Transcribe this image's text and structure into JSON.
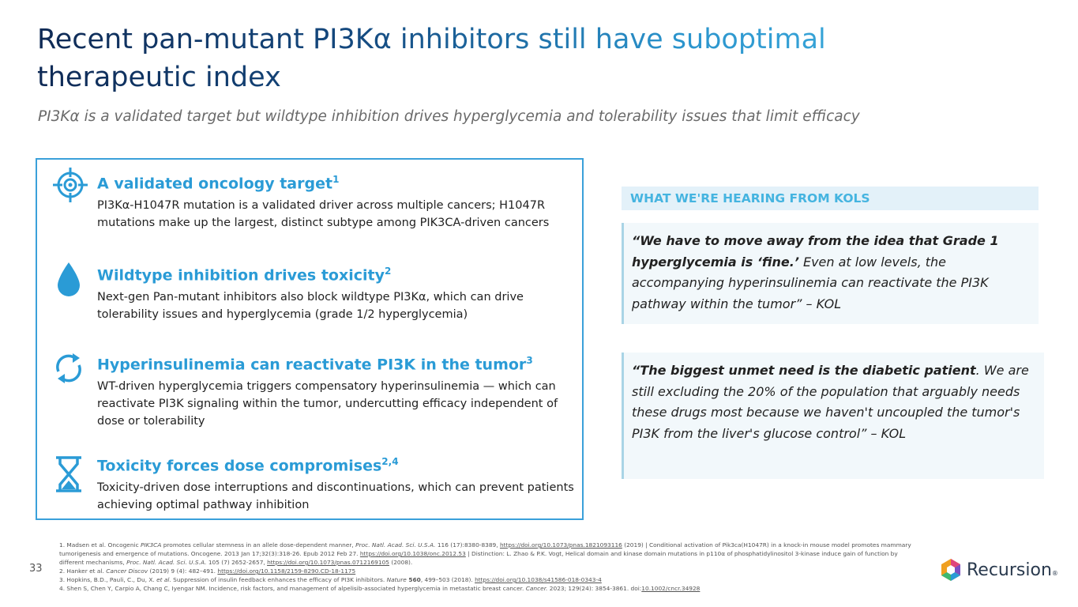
{
  "header": {
    "title": "Recent pan-mutant PI3Kα inhibitors still have suboptimal therapeutic index",
    "subtitle": "PI3Kα is a validated target but wildtype inhibition drives hyperglycemia and tolerability issues that limit efficacy"
  },
  "points": [
    {
      "heading": "A validated oncology target",
      "sup": "1",
      "body": "PI3Kα-H1047R mutation is a validated driver across multiple cancers; H1047R mutations make up the largest, distinct subtype among PIK3CA-driven cancers"
    },
    {
      "heading": "Wildtype inhibition drives toxicity",
      "sup": "2",
      "body": "Next-gen Pan-mutant inhibitors also block wildtype PI3Kα, which can drive tolerability issues and hyperglycemia (grade 1/2 hyperglycemia)"
    },
    {
      "heading": "Hyperinsulinemia can reactivate PI3K in the tumor",
      "sup": "3",
      "body": "WT-driven hyperglycemia triggers compensatory hyperinsulinemia — which can reactivate PI3K signaling within the tumor, undercutting efficacy independent of dose or tolerability"
    },
    {
      "heading": "Toxicity forces dose compromises",
      "sup": "2,4",
      "body": "Toxicity-driven dose interruptions and discontinuations, which can prevent patients achieving optimal pathway inhibition"
    }
  ],
  "kol": {
    "heading": "WHAT WE'RE HEARING FROM KOLS",
    "quotes": [
      [
        {
          "text": "“We have to move away from the idea that Grade 1 hyperglycemia is ‘fine.’",
          "style": "b"
        },
        {
          "text": " Even at low levels, the accompanying hyperinsulinemia can reactivate the PI3K pathway within the tumor”  – KOL"
        }
      ],
      [
        {
          "text": "“The biggest unmet need is the diabetic patient",
          "style": "b"
        },
        {
          "text": ". We are still excluding the 20% of the population that arguably needs these drugs most because we haven't uncoupled the tumor's PI3K from the liver's glucose control” – KOL"
        }
      ]
    ]
  },
  "footnotes": [
    [
      {
        "text": "1. Madsen et al. Oncogenic "
      },
      {
        "text": "PIK3CA",
        "style": "i"
      },
      {
        "text": " promotes cellular stemness in an allele dose-dependent manner, "
      },
      {
        "text": "Proc. Natl. Acad. Sci. U.S.A.",
        "style": "i"
      },
      {
        "text": " 116 (17):8380-8389, "
      },
      {
        "text": "https://doi.org/10.1073/pnas.1821093116",
        "style": "link"
      },
      {
        "text": " (2019) | Conditional activation of Pik3ca(H1047R) in a knock-in mouse model promotes mammary tumorigenesis and emergence of mutations. Oncogene. 2013 Jan 17;32(3):318-26. Epub 2012 Feb 27. "
      },
      {
        "text": "https://doi.org/10.1038/onc.2012.53",
        "style": "link"
      },
      {
        "text": " | Distinction: L. Zhao & P.K. Vogt, Helical domain and kinase domain mutations in p110α of phosphatidylinositol 3-kinase induce gain of function by different mechanisms, "
      },
      {
        "text": "Proc. Natl. Acad. Sci. U.S.A.",
        "style": "i"
      },
      {
        "text": " 105 (7) 2652-2657, "
      },
      {
        "text": "https://doi.org/10.1073/pnas.0712169105",
        "style": "link"
      },
      {
        "text": " (2008)."
      }
    ],
    [
      {
        "text": "2. Hanker et al. "
      },
      {
        "text": "Cancer Discov",
        "style": "i"
      },
      {
        "text": " (2019) 9 (4): 482–491. "
      },
      {
        "text": "https://doi.org/10.1158/2159-8290.CD-18-1175",
        "style": "link"
      }
    ],
    [
      {
        "text": "3. Hopkins, B.D., Pauli, C., Du, X. "
      },
      {
        "text": "et al.",
        "style": "i"
      },
      {
        "text": " Suppression of insulin feedback enhances the efficacy of PI3K inhibitors. "
      },
      {
        "text": "Nature",
        "style": "i"
      },
      {
        "text": " 560",
        "style": "b"
      },
      {
        "text": ", 499–503 (2018). "
      },
      {
        "text": "https://doi.org/10.1038/s41586-018-0343-4",
        "style": "link"
      }
    ],
    [
      {
        "text": "4. Shen S, Chen Y, Carpio A, Chang C, Iyengar NM. Incidence, risk factors, and management of alpelisib-associated hyperglycemia in metastatic breast cancer. "
      },
      {
        "text": "Cancer.",
        "style": "i"
      },
      {
        "text": " 2023; 129(24): 3854-3861. doi:"
      },
      {
        "text": "10.1002/cncr.34928",
        "style": "link"
      }
    ]
  ],
  "page_number": "33",
  "logo": {
    "name": "Recursion",
    "mark": "®"
  }
}
